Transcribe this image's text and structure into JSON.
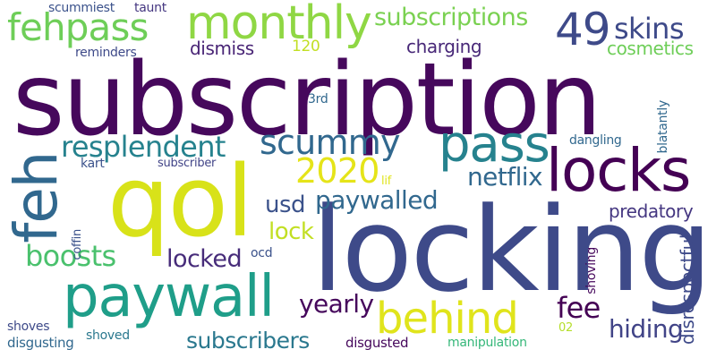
{
  "palette": {
    "dark_purple": "#46085c",
    "indigo": "#3e4a89",
    "slate_blue": "#31688e",
    "teal": "#26828e",
    "sea_green": "#1f9e89",
    "green": "#35b779",
    "lime": "#6ece58",
    "yellow_green": "#b5de2b",
    "yellow": "#e0e41c"
  },
  "words": {
    "subscription": {
      "text": "subscription",
      "color": "#46085c"
    },
    "locking": {
      "text": "locking",
      "color": "#3e4a89"
    },
    "qol": {
      "text": "qol",
      "color": "#d8e219"
    },
    "feh": {
      "text": "feh",
      "color": "#31688e"
    },
    "paywall": {
      "text": "paywall",
      "color": "#1f9e89"
    },
    "locks": {
      "text": "locks",
      "color": "#440154"
    },
    "monthly": {
      "text": "monthly",
      "color": "#8fd744"
    },
    "pass": {
      "text": "pass",
      "color": "#26828e"
    },
    "fehpass": {
      "text": "fehpass",
      "color": "#6ece58"
    },
    "n49": {
      "text": "49",
      "color": "#3e4a89"
    },
    "behind": {
      "text": "behind",
      "color": "#e0e41c"
    },
    "scummy": {
      "text": "scummy",
      "color": "#31688e"
    },
    "resplendent": {
      "text": "resplendent",
      "color": "#26828e"
    },
    "skins": {
      "text": "skins",
      "color": "#3e4a89"
    },
    "subscriptions": {
      "text": "subscriptions",
      "color": "#7ad151"
    },
    "n2020": {
      "text": "2020",
      "color": "#e5e419"
    },
    "boosts": {
      "text": "boosts",
      "color": "#4ac16d"
    },
    "locked": {
      "text": "locked",
      "color": "#472c7a"
    },
    "paywalled": {
      "text": "paywalled",
      "color": "#31688e"
    },
    "netflix": {
      "text": "netflix",
      "color": "#31688e"
    },
    "subscribers": {
      "text": "subscribers",
      "color": "#2a788e"
    },
    "yearly": {
      "text": "yearly",
      "color": "#46085c"
    },
    "hiding": {
      "text": "hiding",
      "color": "#414487"
    },
    "fee": {
      "text": "fee",
      "color": "#440154"
    },
    "lock": {
      "text": "lock",
      "color": "#c2df23"
    },
    "usd": {
      "text": "usd",
      "color": "#3b528b"
    },
    "predatory": {
      "text": "predatory",
      "color": "#453781"
    },
    "disrespectful": {
      "text": "disrespectful",
      "color": "#3e4a89"
    },
    "cosmetics": {
      "text": "cosmetics",
      "color": "#6ece58"
    },
    "dismiss": {
      "text": "dismiss",
      "color": "#482475"
    },
    "charging": {
      "text": "charging",
      "color": "#482878"
    },
    "n120": {
      "text": "120",
      "color": "#c2df23"
    },
    "scummiest": {
      "text": "scummiest",
      "color": "#3b528b"
    },
    "taunt": {
      "text": "taunt",
      "color": "#453781"
    },
    "reminders": {
      "text": "reminders",
      "color": "#3e4a89"
    },
    "n3rd": {
      "text": "3rd",
      "color": "#31688e"
    },
    "dangling": {
      "text": "dangling",
      "color": "#31688e"
    },
    "blatantly": {
      "text": "blatantly",
      "color": "#31688e"
    },
    "kart": {
      "text": "kart",
      "color": "#3b528b"
    },
    "subscriber": {
      "text": "subscriber",
      "color": "#414487"
    },
    "lif": {
      "text": "lif",
      "color": "#e0e41c"
    },
    "coffin": {
      "text": "coffin",
      "color": "#3b528b"
    },
    "ocd": {
      "text": "ocd",
      "color": "#3b528b"
    },
    "shoving": {
      "text": "shoving",
      "color": "#46085c"
    },
    "shoves": {
      "text": "shoves",
      "color": "#3e4a89"
    },
    "disgusting": {
      "text": "disgusting",
      "color": "#31688e"
    },
    "shoved": {
      "text": "shoved",
      "color": "#2a788e"
    },
    "disgusted": {
      "text": "disgusted",
      "color": "#46085c"
    },
    "manipulation": {
      "text": "manipulation",
      "color": "#35b779"
    },
    "n02": {
      "text": "02",
      "color": "#b5de2b"
    }
  }
}
